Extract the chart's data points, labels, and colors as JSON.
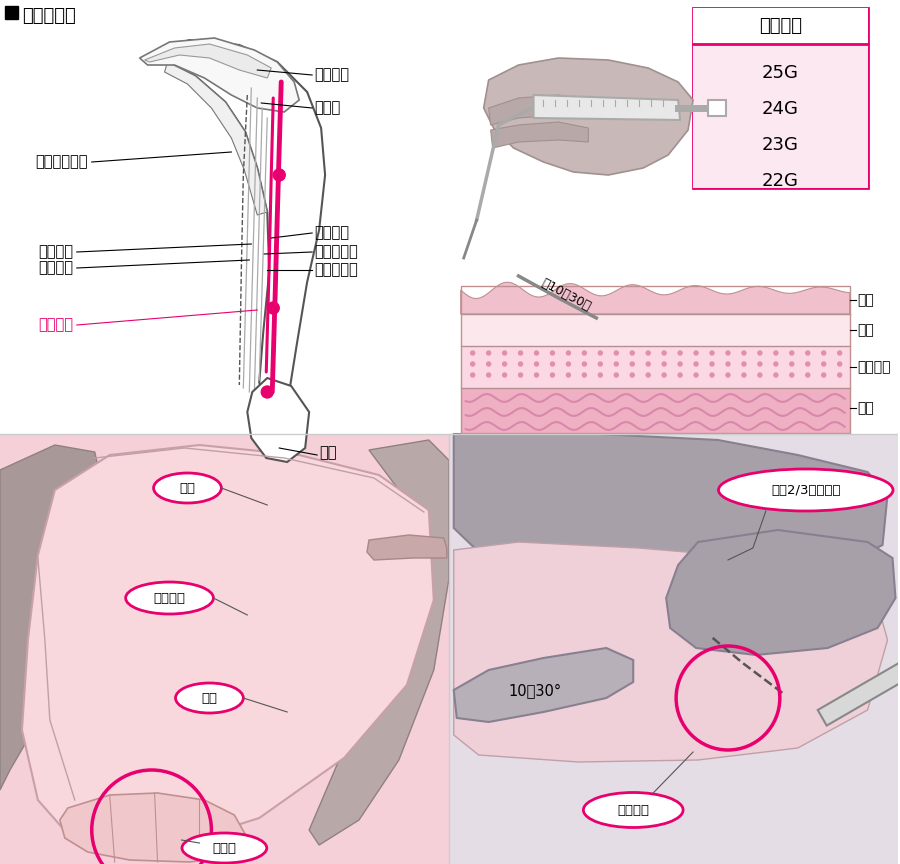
{
  "title": "上腕伸側部",
  "bg_color": "#ffffff",
  "pink": "#e8006e",
  "light_pink": "#fce8f0",
  "dark_gray": "#333333",
  "mid_gray": "#888888",
  "gauge_title": "針の太さ",
  "gauge_items": [
    "25G",
    "24G",
    "23G",
    "22G"
  ],
  "label_humeral_head": "上腕骨頭",
  "label_deltoid": "三角筋",
  "label_circumflex": "上腕回旋動脈",
  "label_brachial": "上腕動脈",
  "label_triceps": "上腕三頭筋",
  "label_deep_brachial": "上腕深動脈",
  "label_axillary": "腋窩神経",
  "label_radial": "桡骨神経",
  "label_injection": "注射部位",
  "label_olecranon": "肘頭",
  "label_epidermis": "表皮",
  "label_dermis": "真皮",
  "label_subcutaneous": "皮下組織",
  "label_muscle_layer": "筋層",
  "label_angle": "約10～30度",
  "label_b1": "肘頭",
  "label_b2": "注射部位",
  "label_b3": "肘頭",
  "label_b4": "手は腰",
  "label_c1": "針を2/3程度挿入",
  "label_c2": "10～30°",
  "label_c3": "固定する"
}
